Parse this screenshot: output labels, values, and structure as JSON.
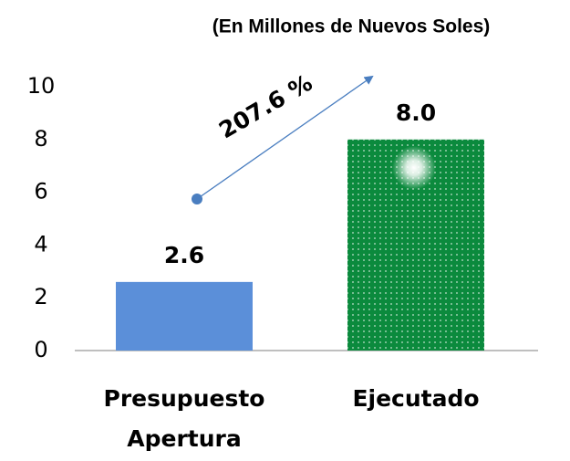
{
  "chart_data": {
    "type": "bar",
    "subtitle": "(En Millones de Nuevos Soles)",
    "categories": [
      "Presupuesto Apertura",
      "Ejecutado"
    ],
    "values": [
      2.6,
      8.0
    ],
    "value_labels": [
      "2.6",
      "8.0"
    ],
    "colors": [
      "#5b8fd9",
      "#0b8a3d"
    ],
    "annotation": "207.6 %",
    "ylim": [
      0,
      10
    ],
    "yticks": [
      0,
      2,
      4,
      6,
      8,
      10
    ],
    "grid": false
  }
}
